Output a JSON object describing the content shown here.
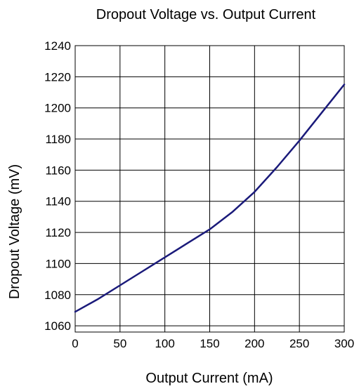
{
  "chart_data": {
    "type": "line",
    "title": "Dropout Voltage vs. Output Current",
    "xlabel": "Output Current (mA)",
    "ylabel": "Dropout Voltage (mV)",
    "xlim": [
      0,
      300
    ],
    "ylim": [
      1056,
      1240
    ],
    "xticks": [
      0,
      50,
      100,
      150,
      200,
      250,
      300
    ],
    "yticks": [
      1060,
      1080,
      1100,
      1120,
      1140,
      1160,
      1180,
      1200,
      1220,
      1240
    ],
    "grid": true,
    "line_color": "#1a1a7a",
    "series": [
      {
        "x": [
          0,
          25,
          50,
          75,
          100,
          125,
          150,
          175,
          200,
          225,
          250,
          275,
          300
        ],
        "y": [
          1069,
          1077,
          1086,
          1095,
          1104,
          1113,
          1122,
          1133,
          1146,
          1162,
          1179,
          1197,
          1215
        ]
      }
    ]
  }
}
